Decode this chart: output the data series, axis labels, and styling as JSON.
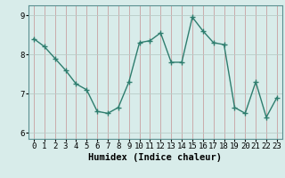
{
  "x": [
    0,
    1,
    2,
    3,
    4,
    5,
    6,
    7,
    8,
    9,
    10,
    11,
    12,
    13,
    14,
    15,
    16,
    17,
    18,
    19,
    20,
    21,
    22,
    23
  ],
  "y": [
    8.4,
    8.2,
    7.9,
    7.6,
    7.25,
    7.1,
    6.55,
    6.5,
    6.65,
    7.3,
    8.3,
    8.35,
    8.55,
    7.8,
    7.8,
    8.95,
    8.6,
    8.3,
    8.25,
    6.65,
    6.5,
    7.3,
    6.4,
    6.9
  ],
  "line_color": "#2e7d6e",
  "marker": "+",
  "bg_color": "#d8ecea",
  "grid_color_v": "#c8a0a0",
  "grid_color_h": "#b8ccc8",
  "xlabel": "Humidex (Indice chaleur)",
  "xlim": [
    -0.5,
    23.5
  ],
  "ylim": [
    5.85,
    9.25
  ],
  "yticks": [
    6,
    7,
    8,
    9
  ],
  "xticks": [
    0,
    1,
    2,
    3,
    4,
    5,
    6,
    7,
    8,
    9,
    10,
    11,
    12,
    13,
    14,
    15,
    16,
    17,
    18,
    19,
    20,
    21,
    22,
    23
  ],
  "xlabel_fontsize": 7.5,
  "tick_fontsize": 6.5,
  "line_width": 1.0,
  "marker_size": 4
}
